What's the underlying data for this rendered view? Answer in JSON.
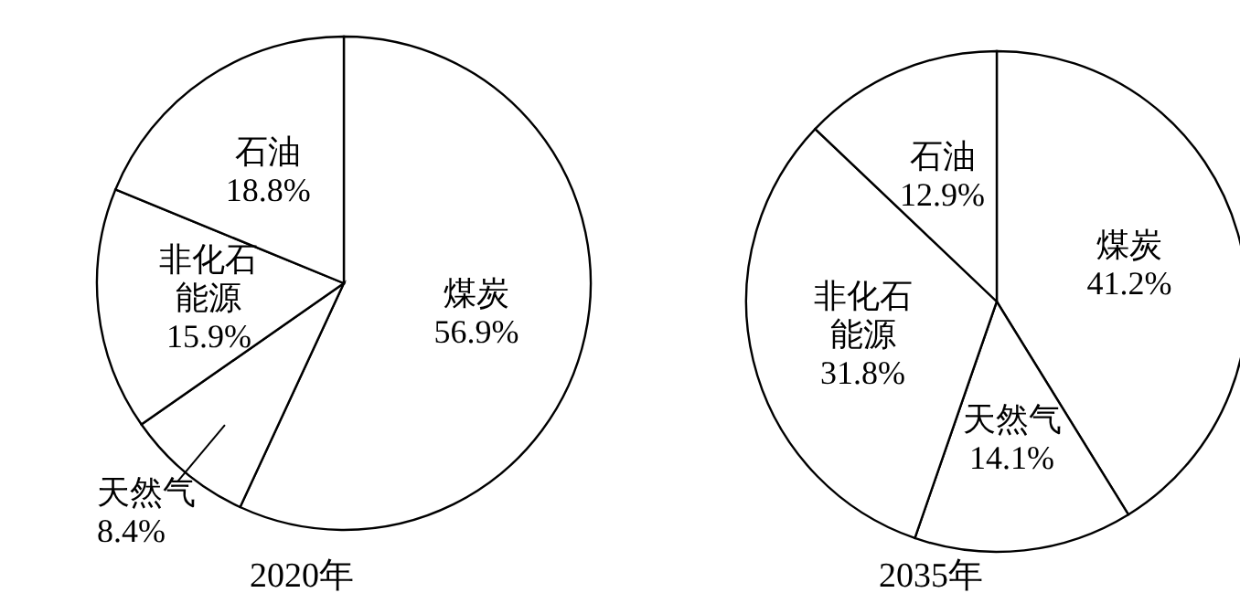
{
  "chart_data": [
    {
      "type": "pie",
      "title": "2020年",
      "categories": [
        "煤炭",
        "天然气",
        "非化石能源",
        "石油"
      ],
      "values": [
        56.9,
        8.4,
        15.9,
        18.8
      ],
      "value_labels": [
        "56.9%",
        "8.4%",
        "15.9%",
        "18.8%"
      ],
      "colors": [
        "#ffffff",
        "#ffffff",
        "#ffffff",
        "#ffffff"
      ]
    },
    {
      "type": "pie",
      "title": "2035年",
      "categories": [
        "煤炭",
        "天然气",
        "非化石能源",
        "石油"
      ],
      "values": [
        41.2,
        14.1,
        31.8,
        12.9
      ],
      "value_labels": [
        "41.2%",
        "14.1%",
        "31.8%",
        "12.9%"
      ],
      "colors": [
        "#ffffff",
        "#ffffff",
        "#ffffff",
        "#ffffff"
      ]
    }
  ]
}
